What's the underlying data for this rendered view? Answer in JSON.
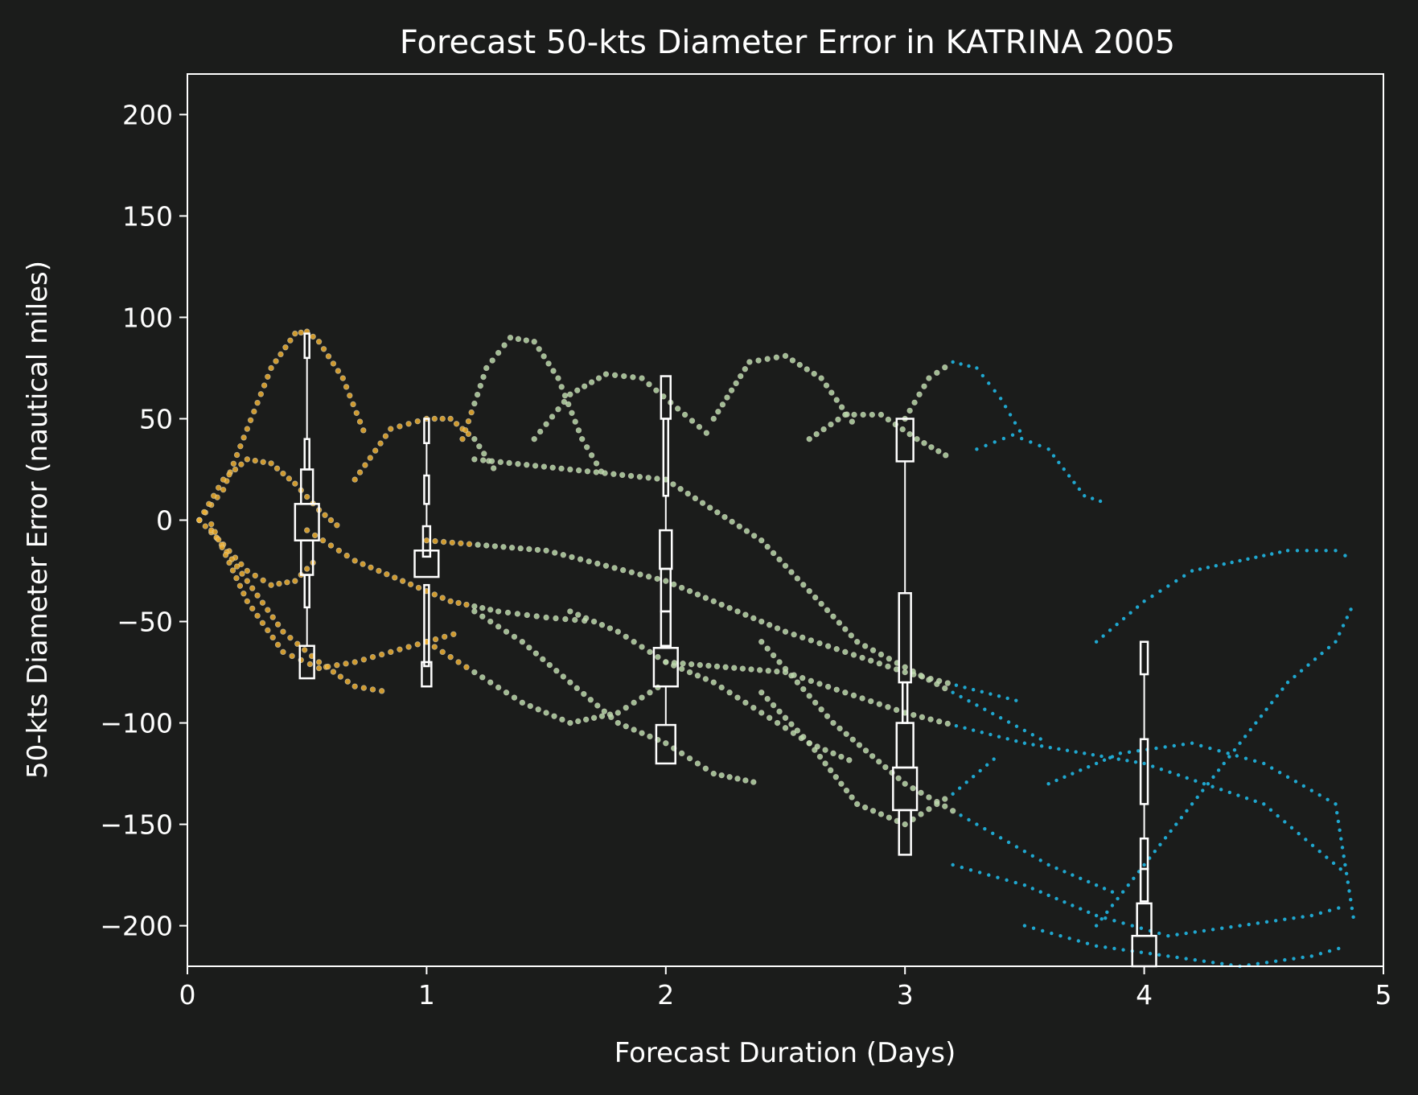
{
  "chart_data": {
    "type": "scatter",
    "title": "Forecast 50-kts Diameter Error in KATRINA 2005",
    "xlabel": "Forecast Duration (Days)",
    "ylabel": "50-kts Diameter Error (nautical miles)",
    "xlim": [
      0,
      5
    ],
    "ylim": [
      -220,
      220
    ],
    "xticks": [
      0,
      1,
      2,
      3,
      4,
      5
    ],
    "xtick_labels": [
      "0",
      "1",
      "2",
      "3",
      "4",
      "5"
    ],
    "yticks": [
      200,
      150,
      100,
      50,
      0,
      -50,
      -100,
      -150,
      -200
    ],
    "ytick_labels": [
      "200",
      "150",
      "100",
      "50",
      "0",
      "−50",
      "−100",
      "−150",
      "−200"
    ],
    "grid": false,
    "colors": {
      "background": "#1b1c1b",
      "axes": "#ffffff",
      "early": "#f0b030",
      "mid": "#b8d8a8",
      "late": "#20c0ee",
      "box": "#ffffff"
    },
    "scatter_tracks": [
      {
        "x": [
          0.05,
          0.15,
          0.25,
          0.35,
          0.45,
          0.5,
          0.55,
          0.65,
          0.75
        ],
        "y": [
          0,
          15,
          45,
          75,
          92,
          93,
          88,
          70,
          40
        ]
      },
      {
        "x": [
          0.05,
          0.15,
          0.25,
          0.35,
          0.45,
          0.55,
          0.65
        ],
        "y": [
          0,
          20,
          30,
          28,
          18,
          5,
          -5
        ]
      },
      {
        "x": [
          0.05,
          0.15,
          0.25,
          0.35,
          0.45,
          0.55
        ],
        "y": [
          0,
          -12,
          -25,
          -32,
          -30,
          -18
        ]
      },
      {
        "x": [
          0.1,
          0.25,
          0.4,
          0.55,
          0.7,
          0.85
        ],
        "y": [
          -5,
          -30,
          -55,
          -70,
          -82,
          -85
        ]
      },
      {
        "x": [
          0.1,
          0.25,
          0.4,
          0.55,
          0.7,
          0.85,
          1.0,
          1.15
        ],
        "y": [
          -2,
          -40,
          -65,
          -73,
          -70,
          -65,
          -60,
          -55
        ]
      },
      {
        "x": [
          0.7,
          0.85,
          1.0,
          1.1,
          1.2,
          1.3
        ],
        "y": [
          20,
          45,
          50,
          50,
          40,
          22
        ]
      },
      {
        "x": [
          0.5,
          0.7,
          0.9,
          1.1,
          1.3,
          1.5,
          1.7
        ],
        "y": [
          -5,
          -20,
          -30,
          -40,
          -45,
          -48,
          -50
        ]
      },
      {
        "x": [
          1.15,
          1.25,
          1.35,
          1.45,
          1.55,
          1.65,
          1.75
        ],
        "y": [
          40,
          75,
          90,
          88,
          70,
          40,
          20
        ]
      },
      {
        "x": [
          1.45,
          1.6,
          1.75,
          1.9,
          2.05,
          2.2
        ],
        "y": [
          40,
          62,
          72,
          70,
          55,
          40
        ]
      },
      {
        "x": [
          1.0,
          1.2,
          1.4,
          1.6,
          1.8,
          2.0
        ],
        "y": [
          -60,
          -75,
          -90,
          -100,
          -95,
          -80
        ]
      },
      {
        "x": [
          1.2,
          1.4,
          1.6,
          1.8,
          2.0,
          2.2,
          2.4
        ],
        "y": [
          -45,
          -60,
          -80,
          -100,
          -110,
          -125,
          -130
        ]
      },
      {
        "x": [
          1.6,
          1.8,
          2.0,
          2.2,
          2.4,
          2.6,
          2.8
        ],
        "y": [
          -45,
          -55,
          -70,
          -80,
          -95,
          -110,
          -120
        ]
      },
      {
        "x": [
          2.2,
          2.35,
          2.5,
          2.65,
          2.8
        ],
        "y": [
          50,
          78,
          81,
          70,
          45
        ]
      },
      {
        "x": [
          2.6,
          2.75,
          2.9,
          3.05,
          3.2
        ],
        "y": [
          40,
          52,
          52,
          40,
          30
        ]
      },
      {
        "x": [
          3.0,
          3.1,
          3.2,
          3.3,
          3.4,
          3.5
        ],
        "y": [
          50,
          70,
          78,
          75,
          60,
          40
        ]
      },
      {
        "x": [
          3.3,
          3.45,
          3.6,
          3.75,
          3.85
        ],
        "y": [
          35,
          42,
          35,
          12,
          8
        ]
      },
      {
        "x": [
          2.4,
          2.7,
          3.0,
          3.3,
          3.6,
          3.9
        ],
        "y": [
          -60,
          -100,
          -130,
          -150,
          -170,
          -185
        ]
      },
      {
        "x": [
          2.4,
          2.6,
          2.8,
          3.0,
          3.2,
          3.4
        ],
        "y": [
          -85,
          -110,
          -140,
          -150,
          -135,
          -115
        ]
      },
      {
        "x": [
          3.2,
          3.5,
          3.8,
          4.1,
          4.4,
          4.7,
          4.85
        ],
        "y": [
          -170,
          -180,
          -195,
          -205,
          -200,
          -195,
          -190
        ]
      },
      {
        "x": [
          3.5,
          3.8,
          4.1,
          4.4,
          4.7,
          4.85
        ],
        "y": [
          -200,
          -210,
          -215,
          -220,
          -215,
          -210
        ]
      },
      {
        "x": [
          1.0,
          1.5,
          2.0,
          2.5,
          3.0,
          3.5
        ],
        "y": [
          -10,
          -15,
          -30,
          -55,
          -75,
          -90
        ]
      },
      {
        "x": [
          1.2,
          1.6,
          2.0,
          2.4,
          2.8,
          3.2,
          3.6
        ],
        "y": [
          30,
          25,
          20,
          -10,
          -60,
          -85,
          -110
        ]
      },
      {
        "x": [
          2.0,
          2.5,
          3.0,
          3.5,
          4.0,
          4.5,
          4.85
        ],
        "y": [
          -70,
          -75,
          -95,
          -110,
          -120,
          -140,
          -175
        ]
      },
      {
        "x": [
          3.8,
          4.0,
          4.2,
          4.4,
          4.6,
          4.8,
          4.88
        ],
        "y": [
          -60,
          -40,
          -25,
          -20,
          -15,
          -15,
          -20
        ]
      },
      {
        "x": [
          3.8,
          4.0,
          4.2,
          4.4,
          4.6,
          4.8,
          4.88
        ],
        "y": [
          -200,
          -170,
          -140,
          -110,
          -80,
          -60,
          -40
        ]
      },
      {
        "x": [
          3.6,
          3.9,
          4.2,
          4.5,
          4.8,
          4.88
        ],
        "y": [
          -130,
          -115,
          -110,
          -120,
          -140,
          -200
        ]
      }
    ],
    "box_groups": [
      {
        "x": 0.5,
        "boxes": [
          {
            "w": 0.02,
            "y0": 80,
            "y1": 92
          },
          {
            "w": 0.02,
            "y0": 25,
            "y1": 40
          },
          {
            "w": 0.05,
            "y0": 8,
            "y1": 25
          },
          {
            "w": 0.1,
            "y0": -10,
            "y1": 8
          },
          {
            "w": 0.05,
            "y0": -27,
            "y1": -10
          },
          {
            "w": 0.02,
            "y0": -43,
            "y1": -27
          },
          {
            "w": 0.06,
            "y0": -78,
            "y1": -62
          }
        ],
        "whiskers": [
          [
            -62,
            -43
          ],
          [
            40,
            80
          ]
        ]
      },
      {
        "x": 1.0,
        "boxes": [
          {
            "w": 0.02,
            "y0": 38,
            "y1": 50
          },
          {
            "w": 0.02,
            "y0": 8,
            "y1": 22
          },
          {
            "w": 0.03,
            "y0": -18,
            "y1": -3
          },
          {
            "w": 0.1,
            "y0": -28,
            "y1": -15
          },
          {
            "w": 0.02,
            "y0": -72,
            "y1": -32
          },
          {
            "w": 0.04,
            "y0": -82,
            "y1": -70
          }
        ],
        "whiskers": [
          [
            22,
            38
          ],
          [
            -3,
            8
          ]
        ]
      },
      {
        "x": 2.0,
        "boxes": [
          {
            "w": 0.04,
            "y0": 50,
            "y1": 71
          },
          {
            "w": 0.02,
            "y0": 12,
            "y1": 50
          },
          {
            "w": 0.05,
            "y0": -24,
            "y1": -5
          },
          {
            "w": 0.04,
            "y0": -45,
            "y1": -24
          },
          {
            "w": 0.04,
            "y0": -62,
            "y1": -45
          },
          {
            "w": 0.1,
            "y0": -82,
            "y1": -63
          },
          {
            "w": 0.08,
            "y0": -120,
            "y1": -101
          }
        ],
        "whiskers": [
          [
            -101,
            -82
          ],
          [
            -5,
            12
          ]
        ]
      },
      {
        "x": 3.0,
        "boxes": [
          {
            "w": 0.07,
            "y0": 29,
            "y1": 50
          },
          {
            "w": 0.05,
            "y0": -80,
            "y1": -36
          },
          {
            "w": 0.02,
            "y0": -100,
            "y1": -80
          },
          {
            "w": 0.07,
            "y0": -122,
            "y1": -100
          },
          {
            "w": 0.1,
            "y0": -143,
            "y1": -122
          },
          {
            "w": 0.05,
            "y0": -165,
            "y1": -143
          }
        ],
        "whiskers": [
          [
            -36,
            29
          ]
        ]
      },
      {
        "x": 4.0,
        "boxes": [
          {
            "w": 0.03,
            "y0": -76,
            "y1": -60
          },
          {
            "w": 0.03,
            "y0": -140,
            "y1": -108
          },
          {
            "w": 0.03,
            "y0": -172,
            "y1": -157
          },
          {
            "w": 0.03,
            "y0": -188,
            "y1": -172
          },
          {
            "w": 0.06,
            "y0": -205,
            "y1": -189
          },
          {
            "w": 0.1,
            "y0": -225,
            "y1": -205
          }
        ],
        "whiskers": [
          [
            -108,
            -76
          ],
          [
            -157,
            -140
          ]
        ]
      }
    ]
  }
}
